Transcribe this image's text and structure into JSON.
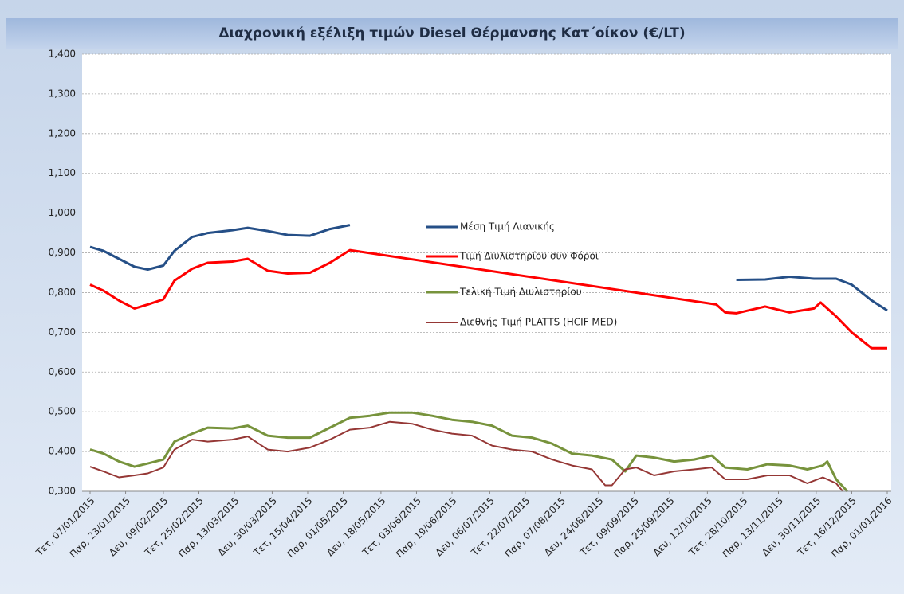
{
  "chart_data": {
    "type": "line",
    "title": "Διαχρονική εξέλιξη τιμών Diesel Θέρμανσης Κατ΄οίκον (€/LT)",
    "xlim": [
      "2015-01-07",
      "2016-01-01"
    ],
    "xticks": [
      {
        "value": "2015-01-07",
        "label": "Τετ, 07/01/2015"
      },
      {
        "value": "2015-01-23",
        "label": "Παρ, 23/01/2015"
      },
      {
        "value": "2015-02-09",
        "label": "Δευ, 09/02/2015"
      },
      {
        "value": "2015-02-25",
        "label": "Τετ, 25/02/2015"
      },
      {
        "value": "2015-03-13",
        "label": "Παρ, 13/03/2015"
      },
      {
        "value": "2015-03-30",
        "label": "Δευ, 30/03/2015"
      },
      {
        "value": "2015-04-15",
        "label": "Τετ, 15/04/2015"
      },
      {
        "value": "2015-05-01",
        "label": "Παρ, 01/05/2015"
      },
      {
        "value": "2015-05-18",
        "label": "Δευ, 18/05/2015"
      },
      {
        "value": "2015-06-03",
        "label": "Τετ, 03/06/2015"
      },
      {
        "value": "2015-06-19",
        "label": "Παρ, 19/06/2015"
      },
      {
        "value": "2015-07-06",
        "label": "Δευ, 06/07/2015"
      },
      {
        "value": "2015-07-22",
        "label": "Τετ, 22/07/2015"
      },
      {
        "value": "2015-08-07",
        "label": "Παρ, 07/08/2015"
      },
      {
        "value": "2015-08-24",
        "label": "Δευ, 24/08/2015"
      },
      {
        "value": "2015-09-09",
        "label": "Τετ, 09/09/2015"
      },
      {
        "value": "2015-09-25",
        "label": "Παρ, 25/09/2015"
      },
      {
        "value": "2015-10-12",
        "label": "Δευ, 12/10/2015"
      },
      {
        "value": "2015-10-28",
        "label": "Τετ, 28/10/2015"
      },
      {
        "value": "2015-11-13",
        "label": "Παρ, 13/11/2015"
      },
      {
        "value": "2015-11-30",
        "label": "Δευ, 30/11/2015"
      },
      {
        "value": "2015-12-16",
        "label": "Τετ, 16/12/2015"
      },
      {
        "value": "2016-01-01",
        "label": "Παρ, 01/01/2016"
      }
    ],
    "ylim": [
      0.3,
      1.4
    ],
    "yticks": [
      {
        "value": 0.3,
        "label": "0,300"
      },
      {
        "value": 0.4,
        "label": "0,400"
      },
      {
        "value": 0.5,
        "label": "0,500"
      },
      {
        "value": 0.6,
        "label": "0,600"
      },
      {
        "value": 0.7,
        "label": "0,700"
      },
      {
        "value": 0.8,
        "label": "0,800"
      },
      {
        "value": 0.9,
        "label": "0,900"
      },
      {
        "value": 1.0,
        "label": "1,000"
      },
      {
        "value": 1.1,
        "label": "1,100"
      },
      {
        "value": 1.2,
        "label": "1,200"
      },
      {
        "value": 1.3,
        "label": "1,300"
      },
      {
        "value": 1.4,
        "label": "1,400"
      }
    ],
    "grid": true,
    "series": [
      {
        "name": "Μέση Τιμή Λιανικής",
        "color": "#254f87",
        "x": [
          "2015-01-07",
          "2015-01-13",
          "2015-01-20",
          "2015-01-27",
          "2015-02-02",
          "2015-02-09",
          "2015-02-14",
          "2015-02-22",
          "2015-03-01",
          "2015-03-12",
          "2015-03-19",
          "2015-03-28",
          "2015-04-06",
          "2015-04-16",
          "2015-04-25",
          "2015-05-04",
          "2015-10-16",
          "2015-10-25",
          "2015-11-07",
          "2015-11-18",
          "2015-11-29",
          "2015-12-09",
          "2015-12-16",
          "2015-12-25",
          "2016-01-01"
        ],
        "values": [
          0.915,
          0.905,
          0.885,
          0.865,
          0.858,
          0.868,
          0.905,
          0.94,
          0.95,
          0.957,
          0.963,
          0.955,
          0.945,
          0.943,
          0.96,
          0.97,
          null,
          0.832,
          0.833,
          0.84,
          0.835,
          0.835,
          0.82,
          0.78,
          0.755
        ]
      },
      {
        "name": "Τιμή Διυλιστηρίου συν Φόροι",
        "color": "#ff0000",
        "x": [
          "2015-01-07",
          "2015-01-13",
          "2015-01-20",
          "2015-01-27",
          "2015-02-02",
          "2015-02-09",
          "2015-02-14",
          "2015-02-22",
          "2015-03-01",
          "2015-03-12",
          "2015-03-19",
          "2015-03-28",
          "2015-04-06",
          "2015-04-16",
          "2015-04-25",
          "2015-05-04",
          "2015-10-16",
          "2015-10-20",
          "2015-10-25",
          "2015-11-07",
          "2015-11-18",
          "2015-11-29",
          "2015-12-02",
          "2015-12-09",
          "2015-12-16",
          "2015-12-25",
          "2016-01-01"
        ],
        "values": [
          0.82,
          0.805,
          0.78,
          0.76,
          0.77,
          0.783,
          0.83,
          0.86,
          0.875,
          0.878,
          0.885,
          0.855,
          0.848,
          0.85,
          0.875,
          0.907,
          0.77,
          0.75,
          0.748,
          0.765,
          0.75,
          0.76,
          0.775,
          0.74,
          0.7,
          0.66,
          0.66
        ]
      },
      {
        "name": "Τελική Τιμή Διυλιστηρίου",
        "color": "#77933c",
        "x": [
          "2015-01-07",
          "2015-01-13",
          "2015-01-20",
          "2015-01-27",
          "2015-02-02",
          "2015-02-09",
          "2015-02-14",
          "2015-02-22",
          "2015-03-01",
          "2015-03-12",
          "2015-03-19",
          "2015-03-28",
          "2015-04-06",
          "2015-04-16",
          "2015-04-25",
          "2015-05-04",
          "2015-05-13",
          "2015-05-22",
          "2015-06-01",
          "2015-06-10",
          "2015-06-19",
          "2015-06-28",
          "2015-07-07",
          "2015-07-16",
          "2015-07-25",
          "2015-08-03",
          "2015-08-12",
          "2015-08-21",
          "2015-08-30",
          "2015-09-05",
          "2015-09-10",
          "2015-09-18",
          "2015-09-27",
          "2015-10-06",
          "2015-10-14",
          "2015-10-20",
          "2015-10-30",
          "2015-11-08",
          "2015-11-18",
          "2015-11-26",
          "2015-12-03",
          "2015-12-05",
          "2015-12-09",
          "2015-12-14"
        ],
        "values": [
          0.405,
          0.395,
          0.375,
          0.362,
          0.37,
          0.38,
          0.425,
          0.445,
          0.46,
          0.458,
          0.465,
          0.44,
          0.435,
          0.435,
          0.46,
          0.485,
          0.49,
          0.498,
          0.498,
          0.49,
          0.48,
          0.475,
          0.465,
          0.44,
          0.435,
          0.42,
          0.395,
          0.39,
          0.38,
          0.35,
          0.39,
          0.385,
          0.375,
          0.38,
          0.39,
          0.36,
          0.355,
          0.368,
          0.365,
          0.355,
          0.365,
          0.375,
          0.33,
          0.3
        ]
      },
      {
        "name": "Διεθνής Τιμή PLATTS (HCIF MED)",
        "color": "#953735",
        "x": [
          "2015-01-07",
          "2015-01-13",
          "2015-01-20",
          "2015-01-27",
          "2015-02-02",
          "2015-02-09",
          "2015-02-14",
          "2015-02-22",
          "2015-03-01",
          "2015-03-12",
          "2015-03-19",
          "2015-03-28",
          "2015-04-06",
          "2015-04-16",
          "2015-04-25",
          "2015-05-04",
          "2015-05-13",
          "2015-05-22",
          "2015-06-01",
          "2015-06-10",
          "2015-06-19",
          "2015-06-28",
          "2015-07-07",
          "2015-07-16",
          "2015-07-25",
          "2015-08-03",
          "2015-08-12",
          "2015-08-21",
          "2015-08-27",
          "2015-08-30",
          "2015-09-05",
          "2015-09-10",
          "2015-09-18",
          "2015-09-27",
          "2015-10-06",
          "2015-10-14",
          "2015-10-20",
          "2015-10-30",
          "2015-11-08",
          "2015-11-18",
          "2015-11-26",
          "2015-12-03",
          "2015-12-09",
          "2015-12-12"
        ],
        "values": [
          0.362,
          0.35,
          0.335,
          0.34,
          0.345,
          0.36,
          0.405,
          0.43,
          0.425,
          0.43,
          0.438,
          0.405,
          0.4,
          0.41,
          0.43,
          0.455,
          0.46,
          0.475,
          0.47,
          0.455,
          0.445,
          0.44,
          0.415,
          0.405,
          0.4,
          0.38,
          0.365,
          0.355,
          0.315,
          0.315,
          0.355,
          0.36,
          0.34,
          0.35,
          0.355,
          0.36,
          0.33,
          0.33,
          0.34,
          0.34,
          0.32,
          0.335,
          0.32,
          0.3
        ]
      }
    ]
  }
}
